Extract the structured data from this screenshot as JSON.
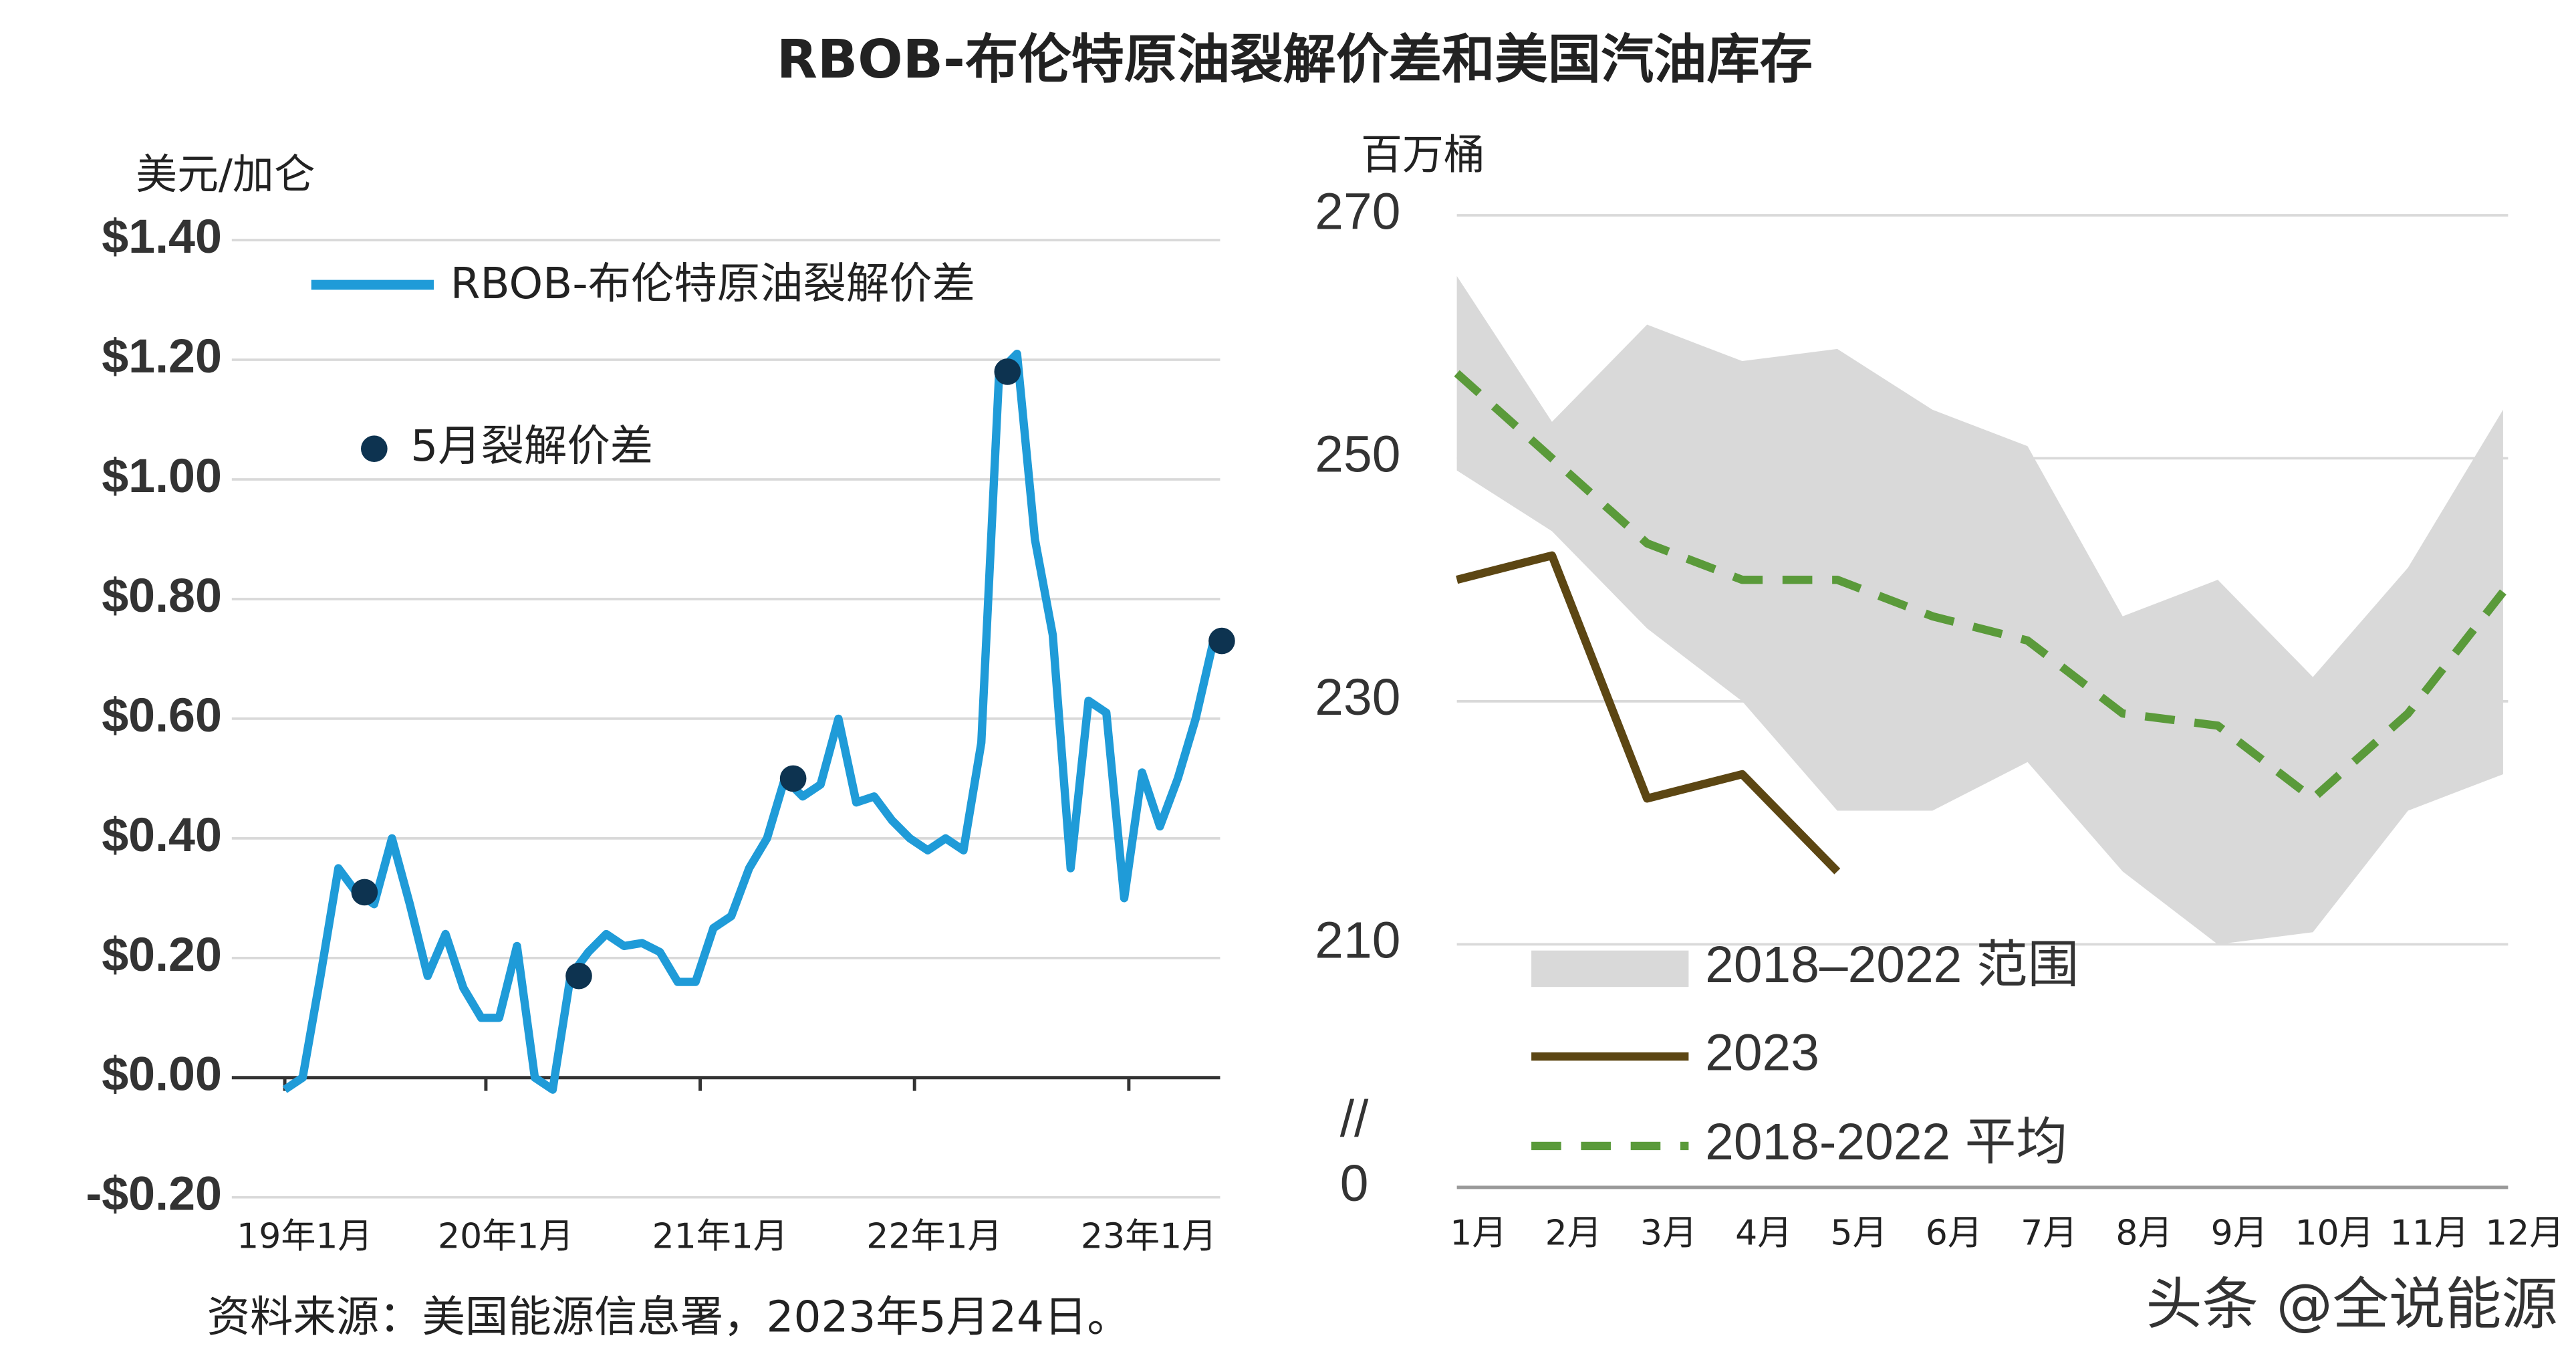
{
  "title": "RBOB-布伦特原油裂解价差和美国汽油库存",
  "source": "资料来源：美国能源信息署，2023年5月24日。",
  "watermark": "头条 @全说能源",
  "chart_data": [
    {
      "type": "line",
      "y_label": "美元/加仑",
      "categories": [
        "19年1月",
        null,
        null,
        null,
        null,
        null,
        null,
        null,
        null,
        null,
        null,
        null,
        "20年1月",
        null,
        null,
        null,
        null,
        null,
        null,
        null,
        null,
        null,
        null,
        null,
        "21年1月",
        null,
        null,
        null,
        null,
        null,
        null,
        null,
        null,
        null,
        null,
        null,
        "22年1月",
        null,
        null,
        null,
        null,
        null,
        null,
        null,
        null,
        null,
        null,
        null,
        "23年1月",
        null,
        null,
        null,
        null
      ],
      "series": [
        {
          "name": "RBOB-布伦特原油裂解价差",
          "color": "#1f9bd8",
          "values": [
            -0.02,
            0.0,
            0.17,
            0.35,
            0.31,
            0.29,
            0.4,
            0.29,
            0.17,
            0.24,
            0.15,
            0.1,
            0.1,
            0.22,
            0.0,
            -0.02,
            0.17,
            0.21,
            0.24,
            0.22,
            0.225,
            0.21,
            0.16,
            0.16,
            0.25,
            0.27,
            0.35,
            0.4,
            0.5,
            0.47,
            0.49,
            0.6,
            0.46,
            0.47,
            0.43,
            0.4,
            0.38,
            0.4,
            0.38,
            0.56,
            1.18,
            1.21,
            0.9,
            0.74,
            0.35,
            0.63,
            0.61,
            0.3,
            0.51,
            0.42,
            0.5,
            0.6,
            0.73
          ]
        },
        {
          "name": "5月裂解价差",
          "color": "#0d3350",
          "values": [
            null,
            null,
            null,
            null,
            0.31,
            null,
            null,
            null,
            null,
            null,
            null,
            null,
            null,
            null,
            null,
            null,
            0.17,
            null,
            null,
            null,
            null,
            null,
            null,
            null,
            null,
            null,
            null,
            null,
            0.5,
            null,
            null,
            null,
            null,
            null,
            null,
            null,
            null,
            null,
            null,
            null,
            1.18,
            null,
            null,
            null,
            null,
            null,
            null,
            null,
            null,
            null,
            null,
            null,
            0.73
          ]
        }
      ],
      "ylim": [
        -0.2,
        1.4
      ],
      "yticks": [
        {
          "value": -0.2,
          "label": "-$0.20"
        },
        {
          "value": 0,
          "label": "$0.00"
        },
        {
          "value": 0.2,
          "label": "$0.20"
        },
        {
          "value": 0.4,
          "label": "$0.40"
        },
        {
          "value": 0.6,
          "label": "$0.60"
        },
        {
          "value": 0.8,
          "label": "$0.80"
        },
        {
          "value": 1.0,
          "label": "$1.00"
        },
        {
          "value": 1.2,
          "label": "$1.20"
        },
        {
          "value": 1.4,
          "label": "$1.40"
        }
      ],
      "grid": true
    },
    {
      "type": "line",
      "y_label": "百万桶",
      "categories": [
        "1月",
        "2月",
        "3月",
        "4月",
        "5月",
        "6月",
        "7月",
        "8月",
        "9月",
        "10月",
        "11月",
        "12月"
      ],
      "series": [
        {
          "name": "2018–2022 范围",
          "type": "band",
          "color": "#d9d9d9",
          "values": [
            265,
            253,
            261,
            258,
            259,
            254,
            251,
            237,
            240,
            232,
            241,
            254
          ],
          "lower": [
            249,
            244,
            236,
            230,
            221,
            221,
            225,
            216,
            210,
            211,
            221,
            224
          ]
        },
        {
          "name": "2023",
          "color": "#5c4613",
          "values": [
            240,
            242,
            222,
            224,
            216,
            null,
            null,
            null,
            null,
            null,
            null,
            null
          ]
        },
        {
          "name": "2018-2022 平均",
          "color": "#5a9a3a",
          "dashed": true,
          "values": [
            257,
            250,
            243,
            240,
            240,
            237,
            235,
            229,
            228,
            222,
            229,
            239
          ]
        }
      ],
      "ylim": [
        190,
        270
      ],
      "yticks": [
        210,
        230,
        250,
        270
      ],
      "y_break": {
        "label": "0",
        "symbol": "//"
      },
      "grid": true
    }
  ]
}
